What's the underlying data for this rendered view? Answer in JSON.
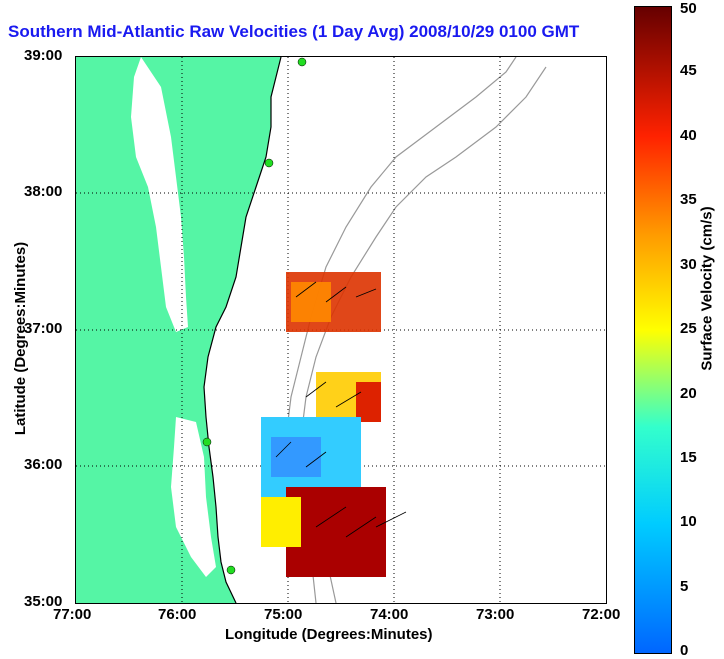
{
  "title": "Southern Mid-Atlantic Raw Velocities (1 Day Avg) 2008/10/29 0100 GMT",
  "axes": {
    "xlabel": "Longitude (Degrees:Minutes)",
    "ylabel": "Latitude (Degrees:Minutes)",
    "x_ticks": [
      "77:00",
      "76:00",
      "75:00",
      "74:00",
      "73:00",
      "72:00"
    ],
    "y_ticks": [
      "39:00",
      "38:00",
      "37:00",
      "36:00",
      "35:00"
    ]
  },
  "colorbar": {
    "title": "Surface Velocity (cm/s)",
    "ticks": [
      "50",
      "45",
      "40",
      "35",
      "30",
      "25",
      "20",
      "15",
      "10",
      "5",
      "0"
    ],
    "range": [
      0,
      50
    ]
  },
  "colors": {
    "land": "#55f5a5",
    "title": "#1a1af0",
    "station": "#22dd22"
  }
}
